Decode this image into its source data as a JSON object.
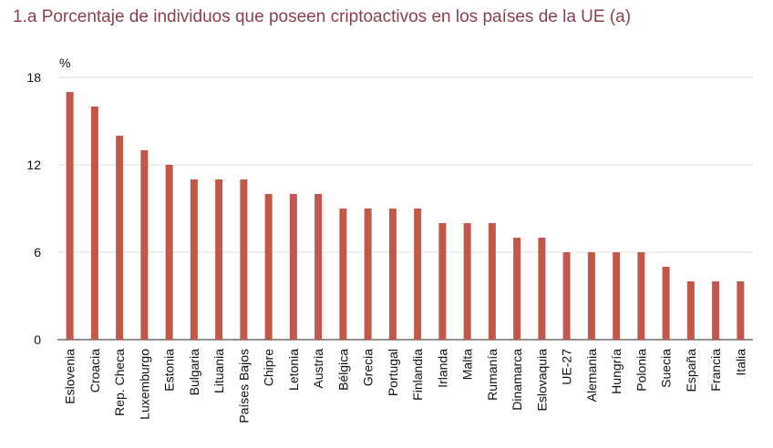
{
  "chart_data": {
    "type": "bar",
    "title": "1.a  Porcentaje de individuos que poseen criptoactivos en los países de la UE (a)",
    "ylabel": "%",
    "xlabel": "",
    "ylim": [
      0,
      18
    ],
    "yticks": [
      0,
      6,
      12,
      18
    ],
    "grid": true,
    "bar_color": "#c0584b",
    "categories": [
      "Eslovenia",
      "Croacia",
      "Rep. Checa",
      "Luxemburgo",
      "Estonia",
      "Bulgaria",
      "Lituania",
      "Países Bajos",
      "Chipre",
      "Letonia",
      "Austria",
      "Bélgica",
      "Grecia",
      "Portugal",
      "Finlandia",
      "Irlanda",
      "Malta",
      "Rumanía",
      "Dinamarca",
      "Eslovaquia",
      "UE-27",
      "Alemania",
      "Hungría",
      "Polonia",
      "Suecia",
      "España",
      "Francia",
      "Italia"
    ],
    "values": [
      17,
      16,
      14,
      13,
      12,
      11,
      11,
      11,
      10,
      10,
      10,
      9,
      9,
      9,
      9,
      8,
      8,
      8,
      7,
      7,
      6,
      6,
      6,
      6,
      5,
      4,
      4,
      4
    ]
  }
}
